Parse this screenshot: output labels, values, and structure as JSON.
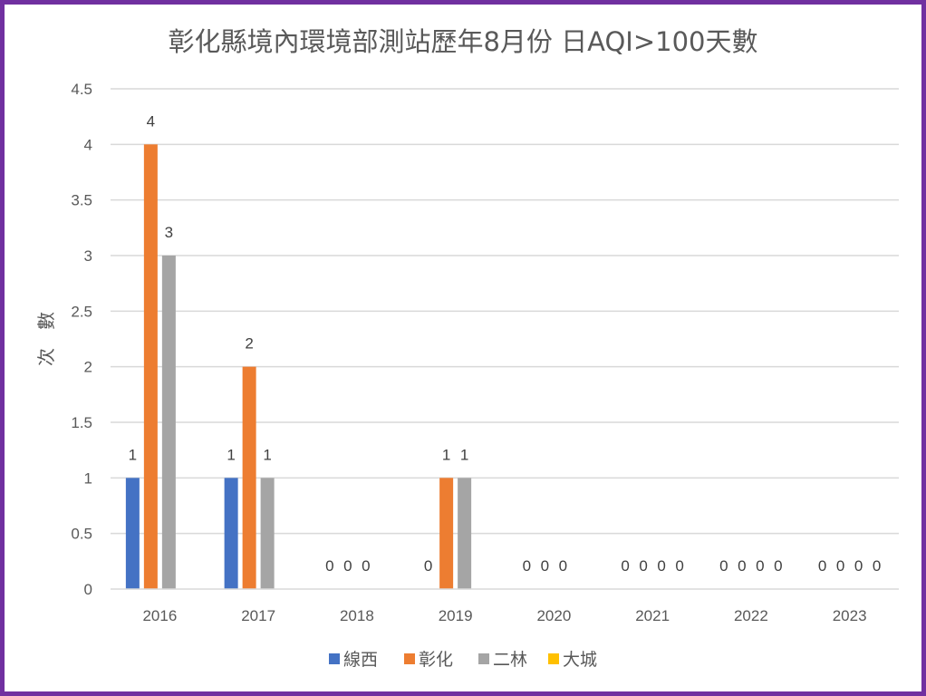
{
  "chart_data": {
    "type": "bar",
    "title": "彰化縣境內環境部測站歷年8月份 日AQI>100天數",
    "xlabel": "",
    "ylabel": "次　數",
    "ylim": [
      0,
      4.5
    ],
    "yticks": [
      "0",
      "0.5",
      "1",
      "1.5",
      "2",
      "2.5",
      "3",
      "3.5",
      "4",
      "4.5"
    ],
    "ytick_values": [
      0,
      0.5,
      1,
      1.5,
      2,
      2.5,
      3,
      3.5,
      4,
      4.5
    ],
    "grid": true,
    "legend_position": "bottom",
    "categories": [
      "2016",
      "2017",
      "2018",
      "2019",
      "2020",
      "2021",
      "2022",
      "2023"
    ],
    "series": [
      {
        "name": "線西",
        "color": "#4472c4",
        "values": [
          1,
          1,
          0,
          0,
          0,
          0,
          0,
          0
        ]
      },
      {
        "name": "彰化",
        "color": "#ed7d31",
        "values": [
          4,
          2,
          0,
          1,
          0,
          0,
          0,
          0
        ]
      },
      {
        "name": "二林",
        "color": "#a5a5a5",
        "values": [
          3,
          1,
          0,
          1,
          0,
          0,
          0,
          0
        ]
      },
      {
        "name": "大城",
        "color": "#ffc000",
        "values": [
          null,
          null,
          null,
          null,
          null,
          0,
          0,
          0
        ]
      }
    ]
  }
}
